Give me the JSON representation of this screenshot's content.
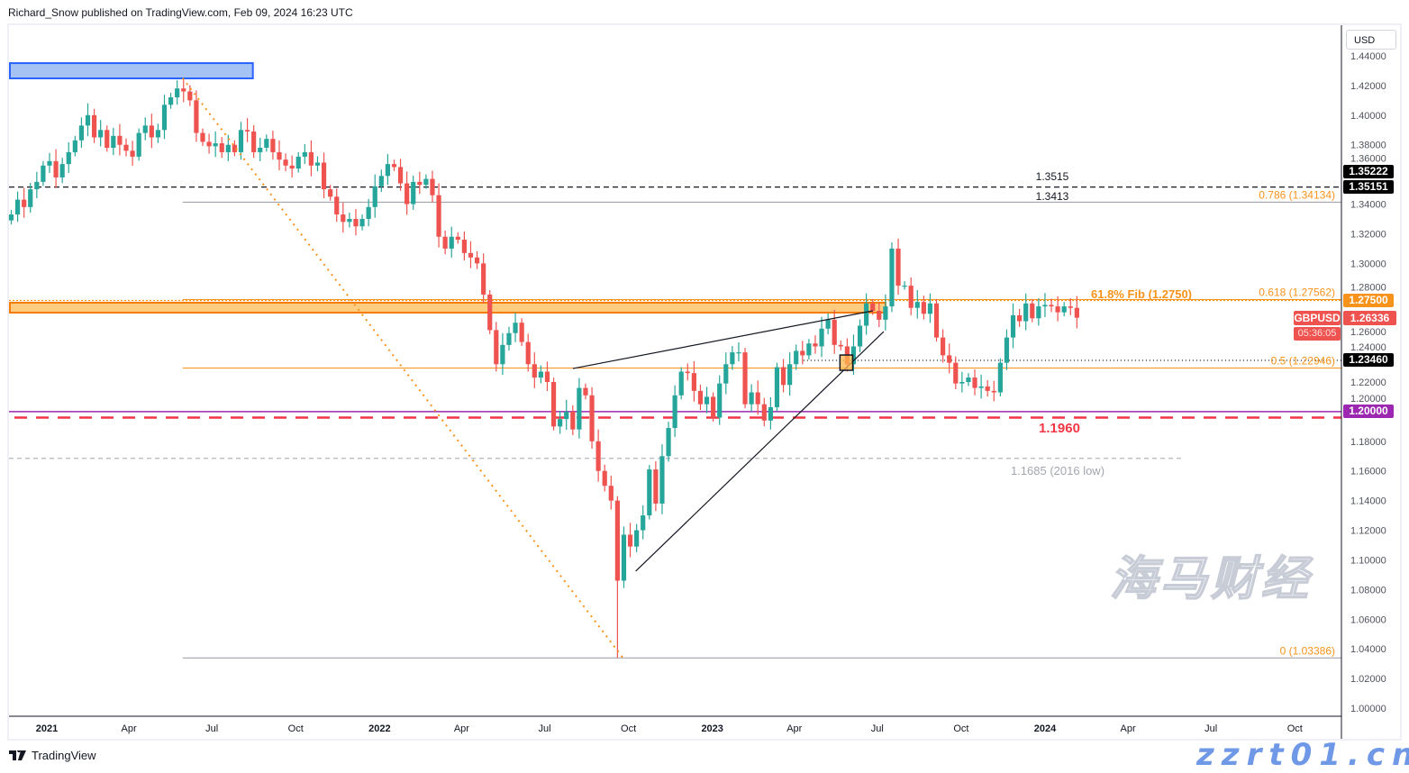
{
  "header": {
    "published": "Richard_Snow published on TradingView.com, Feb 09, 2024 16:23 UTC"
  },
  "currency_button": "USD",
  "symbol": "GBPUSD",
  "last_price": "1.26336",
  "countdown": "05:36:05",
  "branding": {
    "logo_text": "TradingView"
  },
  "watermark": {
    "cn": "海马财经",
    "url": "zzrt01.cn"
  },
  "colors": {
    "up": "#26a69a",
    "down": "#ef5350",
    "fib": "#f7931a",
    "zone_orange": "#ffcc80",
    "zone_blue": "#a4c2f4",
    "support_purple": "#9c27b0",
    "support_red": "#f23645"
  },
  "chart_data": {
    "type": "candlestick",
    "interval": "weekly",
    "ylim": [
      1.0,
      1.45
    ],
    "yticks": [
      "1.44000",
      "1.42000",
      "1.40000",
      "1.38000",
      "1.36000",
      "1.34000",
      "1.32000",
      "1.30000",
      "1.28000",
      "1.26000",
      "1.24000",
      "1.22000",
      "1.20000",
      "1.18000",
      "1.16000",
      "1.14000",
      "1.12000",
      "1.10000",
      "1.08000",
      "1.06000",
      "1.04000",
      "1.02000",
      "1.00000"
    ],
    "xticks": [
      {
        "label": "2021",
        "date": "2021-01-01",
        "bold": true
      },
      {
        "label": "Apr",
        "date": "2021-04-01"
      },
      {
        "label": "Jul",
        "date": "2021-07-01"
      },
      {
        "label": "Oct",
        "date": "2021-10-01"
      },
      {
        "label": "2022",
        "date": "2022-01-01",
        "bold": true
      },
      {
        "label": "Apr",
        "date": "2022-04-01"
      },
      {
        "label": "Jul",
        "date": "2022-07-01"
      },
      {
        "label": "Oct",
        "date": "2022-10-01"
      },
      {
        "label": "2023",
        "date": "2023-01-01",
        "bold": true
      },
      {
        "label": "Apr",
        "date": "2023-04-01"
      },
      {
        "label": "Jul",
        "date": "2023-07-01"
      },
      {
        "label": "Oct",
        "date": "2023-10-01"
      },
      {
        "label": "2024",
        "date": "2024-01-01",
        "bold": true
      },
      {
        "label": "Apr",
        "date": "2024-04-01"
      },
      {
        "label": "Jul",
        "date": "2024-07-01"
      },
      {
        "label": "Oct",
        "date": "2024-10-01"
      }
    ],
    "weekly_close_by_quarter": {
      "2020-Q4": [
        1.333,
        1.343,
        1.338,
        1.35,
        1.355,
        1.366
      ],
      "2021-Q1": [
        1.369,
        1.358,
        1.367,
        1.375,
        1.383,
        1.393,
        1.4,
        1.385,
        1.39,
        1.378,
        1.386,
        1.38,
        1.376
      ],
      "2021-Q2": [
        1.372,
        1.388,
        1.393,
        1.385,
        1.39,
        1.407,
        1.412,
        1.418,
        1.416,
        1.41,
        1.388,
        1.382,
        1.379
      ],
      "2021-Q3": [
        1.381,
        1.375,
        1.38,
        1.375,
        1.39,
        1.389,
        1.375,
        1.378,
        1.384,
        1.375,
        1.37,
        1.366,
        1.364
      ],
      "2021-Q4": [
        1.372,
        1.375,
        1.366,
        1.368,
        1.35,
        1.345,
        1.333,
        1.328,
        1.33,
        1.325,
        1.33,
        1.338,
        1.352
      ],
      "2022-Q1": [
        1.359,
        1.367,
        1.365,
        1.354,
        1.34,
        1.355,
        1.353,
        1.357,
        1.346,
        1.318,
        1.31,
        1.318,
        1.316
      ],
      "2022-Q2": [
        1.307,
        1.304,
        1.3,
        1.279,
        1.255,
        1.232,
        1.245,
        1.253,
        1.26,
        1.247,
        1.232,
        1.223,
        1.227
      ],
      "2022-Q3": [
        1.22,
        1.19,
        1.195,
        1.2,
        1.188,
        1.216,
        1.211,
        1.18,
        1.16,
        1.15,
        1.14,
        1.086,
        1.117
      ],
      "2022-Q4": [
        1.109,
        1.12,
        1.13,
        1.161,
        1.138,
        1.17,
        1.189,
        1.211,
        1.227,
        1.226,
        1.214,
        1.205,
        1.21
      ],
      "2023-Q1": [
        1.196,
        1.219,
        1.232,
        1.24,
        1.24,
        1.205,
        1.213,
        1.205,
        1.194,
        1.203,
        1.23,
        1.218,
        1.232
      ],
      "2023-Q2": [
        1.241,
        1.238,
        1.246,
        1.244,
        1.256,
        1.262,
        1.245,
        1.244,
        1.232,
        1.244,
        1.258,
        1.273,
        1.268
      ],
      "2023-Q3": [
        1.262,
        1.271,
        1.31,
        1.285,
        1.285,
        1.27,
        1.274,
        1.266,
        1.273,
        1.25,
        1.238,
        1.233,
        1.219
      ],
      "2023-Q4": [
        1.22,
        1.223,
        1.216,
        1.217,
        1.214,
        1.213,
        1.233,
        1.25,
        1.265,
        1.261,
        1.273,
        1.263,
        1.271
      ],
      "2024-Q1": [
        1.272,
        1.271,
        1.267,
        1.271,
        1.27,
        1.26336
      ]
    },
    "extremes": {
      "high_2021": 1.4249,
      "low_2022": 1.03386,
      "high_2023": 1.3142
    },
    "annotations": {
      "blue_zone": {
        "from": "2020-11-20",
        "to": "2021-08-14",
        "top": 1.4351,
        "bottom": 1.4248
      },
      "fib_trendline": {
        "from": {
          "date": "2021-05-30",
          "price": 1.4249
        },
        "to": {
          "date": "2022-09-25",
          "price": 1.03386
        }
      },
      "fib_levels": [
        {
          "label": "0.786 (1.34134)",
          "price": 1.34134
        },
        {
          "label": "0.618 (1.27562)",
          "price": 1.27562
        },
        {
          "label": "0.5 (1.22946)",
          "price": 1.22946
        },
        {
          "label": "0 (1.03386)",
          "price": 1.03386
        }
      ],
      "fib_start": "2021-05-30",
      "level_13515": {
        "label": "1.3515",
        "price": 1.3515
      },
      "level_13413": {
        "label": "1.3413",
        "price": 1.3413
      },
      "fib_618_line": {
        "label": "61.8% Fib (1.2750)",
        "price": 1.275
      },
      "orange_zone": {
        "to": "2023-07-09",
        "top": 1.2735,
        "bottom": 1.2668
      },
      "dotted_12346": {
        "from": "2023-04-11",
        "price": 1.2346
      },
      "purple_12000": {
        "price": 1.2
      },
      "red_11960": {
        "label": "1.1960",
        "price": 1.196
      },
      "gray_11685": {
        "label": "1.1685 (2016 low)",
        "price": 1.1685,
        "to": "2024-05-30"
      },
      "wedge_upper": {
        "from": {
          "date": "2022-08-01",
          "price": 1.2291
        },
        "to": {
          "date": "2023-06-26",
          "price": 1.268
        }
      },
      "wedge_lower": {
        "from": {
          "date": "2022-10-09",
          "price": 1.0924
        },
        "to": {
          "date": "2023-07-08",
          "price": 1.254
        }
      },
      "retest_box": {
        "from": "2023-05-21",
        "to": "2023-06-04",
        "top": 1.2382,
        "bottom": 1.2279
      }
    },
    "price_badges": [
      {
        "text": "1.35222",
        "price": 1.35222,
        "color": "#000000"
      },
      {
        "text": "1.35151",
        "price": 1.35151,
        "color": "#000000"
      },
      {
        "text": "1.27500",
        "price": 1.275,
        "color": "#f7931a"
      },
      {
        "text": "1.23460",
        "price": 1.2346,
        "color": "#000000"
      },
      {
        "text": "1.20000",
        "price": 1.2,
        "color": "#9c27b0"
      }
    ]
  }
}
